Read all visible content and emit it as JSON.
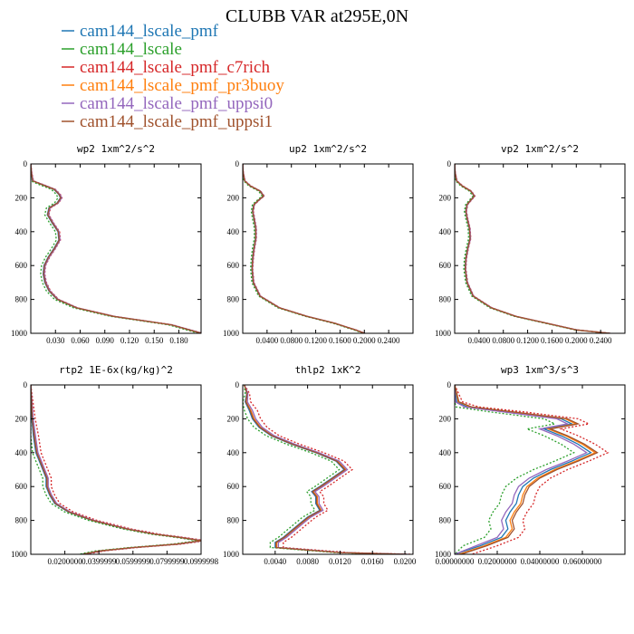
{
  "figure_title": "CLUBB VAR at295E,0N",
  "colors": {
    "cam144_lscale_pmf": "#1f77b4",
    "cam144_lscale": "#2ca02c",
    "cam144_lscale_pmf_c7rich": "#d62728",
    "cam144_lscale_pmf_pr3buoy": "#ff7f0e",
    "cam144_lscale_pmf_uppsi0": "#9467bd",
    "cam144_lscale_pmf_uppsi1": "#a0522d"
  },
  "legend": [
    {
      "label": "cam144_lscale_pmf",
      "color": "#1f77b4"
    },
    {
      "label": "cam144_lscale",
      "color": "#2ca02c"
    },
    {
      "label": "cam144_lscale_pmf_c7rich",
      "color": "#d62728"
    },
    {
      "label": "cam144_lscale_pmf_pr3buoy",
      "color": "#ff7f0e"
    },
    {
      "label": "cam144_lscale_pmf_uppsi0",
      "color": "#9467bd"
    },
    {
      "label": "cam144_lscale_pmf_uppsi1",
      "color": "#a0522d"
    }
  ],
  "chart_data": [
    {
      "type": "line",
      "title": "wp2  1xm^2/s^2",
      "xlim": [
        0.0,
        0.207
      ],
      "ylim": [
        1000,
        0
      ],
      "xticks": [
        "0.030",
        "0.060",
        "0.090",
        "0.120",
        "0.150",
        "0.180"
      ],
      "xtick_values": [
        0.03,
        0.06,
        0.09,
        0.12,
        0.15,
        0.18
      ],
      "yticks": [
        0,
        200,
        400,
        600,
        800,
        1000
      ],
      "y": [
        0,
        50,
        100,
        120,
        150,
        180,
        200,
        230,
        260,
        300,
        350,
        400,
        450,
        500,
        550,
        600,
        650,
        700,
        750,
        800,
        850,
        900,
        950,
        1000
      ],
      "x": [
        0,
        0.0005,
        0.002,
        0.012,
        0.028,
        0.034,
        0.036,
        0.032,
        0.022,
        0.02,
        0.026,
        0.033,
        0.034,
        0.028,
        0.021,
        0.016,
        0.015,
        0.017,
        0.022,
        0.032,
        0.055,
        0.1,
        0.17,
        0.207
      ],
      "series": [
        {
          "key": "cam144_lscale_pmf",
          "dx": 0.0,
          "dashed": false
        },
        {
          "key": "cam144_lscale",
          "dx": -0.003,
          "dashed": true
        },
        {
          "key": "cam144_lscale_pmf_c7rich",
          "dx": 0.002,
          "dashed": true
        },
        {
          "key": "cam144_lscale_pmf_pr3buoy",
          "dx": 0.001,
          "dashed": false
        },
        {
          "key": "cam144_lscale_pmf_uppsi0",
          "dx": 0.0015,
          "dashed": false
        },
        {
          "key": "cam144_lscale_pmf_uppsi1",
          "dx": 0.0005,
          "dashed": false
        }
      ]
    },
    {
      "type": "line",
      "title": "up2  1xm^2/s^2",
      "xlim": [
        0.0,
        0.28
      ],
      "ylim": [
        1000,
        0
      ],
      "xticks": [
        "0.0400",
        "0.0800",
        "0.1200",
        "0.1600",
        "0.2000",
        "0.2400"
      ],
      "xtick_values": [
        0.04,
        0.08,
        0.12,
        0.16,
        0.2,
        0.24
      ],
      "yticks": [
        0,
        200,
        400,
        600,
        800,
        1000
      ],
      "y": [
        0,
        50,
        100,
        130,
        160,
        190,
        210,
        240,
        280,
        320,
        380,
        440,
        500,
        560,
        620,
        700,
        780,
        850,
        900,
        940,
        980,
        1000
      ],
      "x": [
        0,
        0.0005,
        0.003,
        0.012,
        0.028,
        0.034,
        0.027,
        0.018,
        0.016,
        0.018,
        0.021,
        0.021,
        0.018,
        0.016,
        0.015,
        0.017,
        0.028,
        0.06,
        0.105,
        0.15,
        0.185,
        0.2
      ],
      "series": [
        {
          "key": "cam144_lscale_pmf",
          "dx": 0.0,
          "dashed": false
        },
        {
          "key": "cam144_lscale",
          "dx": -0.002,
          "dashed": true
        },
        {
          "key": "cam144_lscale_pmf_c7rich",
          "dx": 0.0015,
          "dashed": true
        },
        {
          "key": "cam144_lscale_pmf_pr3buoy",
          "dx": 0.0008,
          "dashed": false
        },
        {
          "key": "cam144_lscale_pmf_uppsi0",
          "dx": 0.001,
          "dashed": false
        },
        {
          "key": "cam144_lscale_pmf_uppsi1",
          "dx": 0.0003,
          "dashed": false
        }
      ]
    },
    {
      "type": "line",
      "title": "vp2  1xm^2/s^2",
      "xlim": [
        0.0,
        0.28
      ],
      "ylim": [
        1000,
        0
      ],
      "xticks": [
        "0.0400",
        "0.0800",
        "0.1200",
        "0.1600",
        "0.2000",
        "0.2400"
      ],
      "xtick_values": [
        0.04,
        0.08,
        0.12,
        0.16,
        0.2,
        0.24
      ],
      "yticks": [
        0,
        200,
        400,
        600,
        800,
        1000
      ],
      "y": [
        0,
        50,
        100,
        130,
        160,
        190,
        210,
        240,
        280,
        320,
        380,
        440,
        500,
        560,
        620,
        700,
        780,
        850,
        900,
        940,
        980,
        1000
      ],
      "x": [
        0,
        0.0005,
        0.003,
        0.012,
        0.026,
        0.032,
        0.027,
        0.02,
        0.018,
        0.02,
        0.024,
        0.025,
        0.021,
        0.018,
        0.017,
        0.02,
        0.03,
        0.06,
        0.1,
        0.15,
        0.2,
        0.255
      ],
      "series": [
        {
          "key": "cam144_lscale_pmf",
          "dx": 0.0,
          "dashed": false
        },
        {
          "key": "cam144_lscale",
          "dx": -0.002,
          "dashed": true
        },
        {
          "key": "cam144_lscale_pmf_c7rich",
          "dx": 0.0015,
          "dashed": true
        },
        {
          "key": "cam144_lscale_pmf_pr3buoy",
          "dx": 0.0008,
          "dashed": false
        },
        {
          "key": "cam144_lscale_pmf_uppsi0",
          "dx": 0.001,
          "dashed": false
        },
        {
          "key": "cam144_lscale_pmf_uppsi1",
          "dx": 0.0003,
          "dashed": false
        }
      ]
    },
    {
      "type": "line",
      "title": "rtp2  1E-6x(kg/kg)^2",
      "xlim": [
        0.0,
        0.1
      ],
      "ylim": [
        1000,
        0
      ],
      "xticks": [
        "0.0200000",
        "0.0399999",
        "0.0599999",
        "0.0799999",
        "0.0999998"
      ],
      "xtick_values": [
        0.02,
        0.04,
        0.06,
        0.08,
        0.1
      ],
      "yticks": [
        0,
        200,
        400,
        600,
        800,
        1000
      ],
      "y": [
        0,
        100,
        200,
        300,
        400,
        450,
        500,
        550,
        600,
        650,
        700,
        750,
        800,
        850,
        880,
        900,
        920,
        940,
        960,
        980,
        1000
      ],
      "x": [
        0,
        0.0003,
        0.0006,
        0.0015,
        0.003,
        0.005,
        0.007,
        0.009,
        0.009,
        0.011,
        0.014,
        0.022,
        0.036,
        0.056,
        0.072,
        0.087,
        0.1,
        0.085,
        0.06,
        0.04,
        0.03
      ],
      "series": [
        {
          "key": "cam144_lscale_pmf",
          "dx": 0.0,
          "dashed": false
        },
        {
          "key": "cam144_lscale",
          "dx": -0.002,
          "dashed": true
        },
        {
          "key": "cam144_lscale_pmf_c7rich",
          "dx": 0.003,
          "dashed": true
        },
        {
          "key": "cam144_lscale_pmf_pr3buoy",
          "dx": 0.0008,
          "dashed": false
        },
        {
          "key": "cam144_lscale_pmf_uppsi0",
          "dx": 0.0012,
          "dashed": false
        },
        {
          "key": "cam144_lscale_pmf_uppsi1",
          "dx": 0.0004,
          "dashed": false
        }
      ]
    },
    {
      "type": "line",
      "title": "thlp2  1xK^2",
      "xlim": [
        0.0,
        0.021
      ],
      "ylim": [
        1000,
        0
      ],
      "xticks": [
        "0.0040",
        "0.0080",
        "0.0120",
        "0.0160",
        "0.0200"
      ],
      "xtick_values": [
        0.004,
        0.008,
        0.012,
        0.016,
        0.02
      ],
      "yticks": [
        0,
        200,
        400,
        600,
        800,
        1000
      ],
      "y": [
        0,
        50,
        100,
        150,
        200,
        250,
        300,
        350,
        400,
        450,
        500,
        550,
        600,
        630,
        660,
        700,
        740,
        780,
        820,
        860,
        900,
        930,
        960,
        990,
        1000
      ],
      "x": [
        0.0002,
        0.0005,
        0.0003,
        0.0008,
        0.0012,
        0.002,
        0.0035,
        0.006,
        0.009,
        0.0115,
        0.0125,
        0.011,
        0.0095,
        0.0085,
        0.009,
        0.009,
        0.0095,
        0.008,
        0.007,
        0.006,
        0.005,
        0.004,
        0.004,
        0.012,
        0.02
      ],
      "series": [
        {
          "key": "cam144_lscale_pmf",
          "dx": 0.0,
          "dashed": false
        },
        {
          "key": "cam144_lscale",
          "dx": -0.0006,
          "dashed": true
        },
        {
          "key": "cam144_lscale_pmf_c7rich",
          "dx": 0.001,
          "dashed": true
        },
        {
          "key": "cam144_lscale_pmf_pr3buoy",
          "dx": 0.0002,
          "dashed": false
        },
        {
          "key": "cam144_lscale_pmf_uppsi0",
          "dx": 0.0004,
          "dashed": false
        },
        {
          "key": "cam144_lscale_pmf_uppsi1",
          "dx": 0.0001,
          "dashed": false
        }
      ]
    },
    {
      "type": "line",
      "title": "wp3  1xm^3/s^3",
      "xlim": [
        0.0,
        0.08
      ],
      "ylim": [
        1000,
        0
      ],
      "xticks": [
        "0.00000000",
        "0.02000000",
        "0.04000000",
        "0.06000000"
      ],
      "xtick_values": [
        0.0,
        0.02,
        0.04,
        0.06
      ],
      "yticks": [
        0,
        200,
        400,
        600,
        800,
        1000
      ],
      "y": [
        0,
        100,
        130,
        160,
        200,
        230,
        260,
        300,
        350,
        400,
        450,
        500,
        550,
        600,
        650,
        700,
        750,
        800,
        850,
        900,
        950,
        1000
      ],
      "x": [
        0,
        0.001,
        0.006,
        0.025,
        0.05,
        0.055,
        0.042,
        0.05,
        0.058,
        0.064,
        0.055,
        0.045,
        0.037,
        0.032,
        0.03,
        0.029,
        0.026,
        0.024,
        0.025,
        0.022,
        0.012,
        0.0
      ],
      "series": [
        {
          "key": "cam144_lscale_pmf",
          "dx": 0.0,
          "dashed": false
        },
        {
          "key": "cam144_lscale",
          "dx": -0.008,
          "dashed": true
        },
        {
          "key": "cam144_lscale_pmf_c7rich",
          "dx": 0.008,
          "dashed": true
        },
        {
          "key": "cam144_lscale_pmf_pr3buoy",
          "dx": 0.002,
          "dashed": false
        },
        {
          "key": "cam144_lscale_pmf_uppsi0",
          "dx": -0.002,
          "dashed": false
        },
        {
          "key": "cam144_lscale_pmf_uppsi1",
          "dx": 0.003,
          "dashed": false
        }
      ]
    }
  ]
}
